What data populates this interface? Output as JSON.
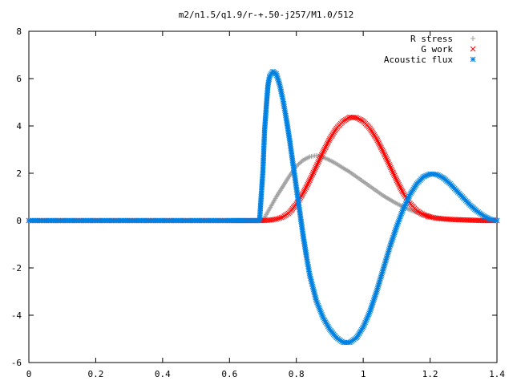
{
  "chart_data": {
    "type": "scatter",
    "title": "m2/n1.5/q1.9/r-+.50-j257/M1.0/512",
    "xlabel": "",
    "ylabel": "",
    "xlim": [
      0,
      1.4
    ],
    "ylim": [
      -6,
      8
    ],
    "xticks": [
      "0",
      "0.2",
      "0.4",
      "0.6",
      "0.8",
      "1",
      "1.2",
      "1.4"
    ],
    "yticks": [
      "-6",
      "-4",
      "-2",
      "0",
      "2",
      "4",
      "6",
      "8"
    ],
    "grid": false,
    "legend_position": "top-right",
    "series": [
      {
        "name": "R stress",
        "marker": "plus",
        "color": "#a0a0a0",
        "points": [
          [
            0.0,
            0
          ],
          [
            0.1,
            0
          ],
          [
            0.2,
            0
          ],
          [
            0.3,
            0
          ],
          [
            0.4,
            0
          ],
          [
            0.5,
            0
          ],
          [
            0.6,
            0
          ],
          [
            0.7,
            0
          ],
          [
            0.72,
            0.5
          ],
          [
            0.74,
            1.0
          ],
          [
            0.76,
            1.45
          ],
          [
            0.78,
            1.9
          ],
          [
            0.8,
            2.3
          ],
          [
            0.82,
            2.55
          ],
          [
            0.84,
            2.7
          ],
          [
            0.86,
            2.75
          ],
          [
            0.88,
            2.68
          ],
          [
            0.9,
            2.55
          ],
          [
            0.92,
            2.4
          ],
          [
            0.94,
            2.22
          ],
          [
            0.96,
            2.05
          ],
          [
            0.98,
            1.85
          ],
          [
            1.0,
            1.65
          ],
          [
            1.02,
            1.45
          ],
          [
            1.04,
            1.25
          ],
          [
            1.06,
            1.05
          ],
          [
            1.08,
            0.88
          ],
          [
            1.1,
            0.72
          ],
          [
            1.12,
            0.58
          ],
          [
            1.14,
            0.45
          ],
          [
            1.16,
            0.35
          ],
          [
            1.18,
            0.26
          ],
          [
            1.2,
            0.18
          ],
          [
            1.22,
            0.12
          ],
          [
            1.24,
            0.08
          ],
          [
            1.26,
            0.05
          ],
          [
            1.28,
            0.03
          ],
          [
            1.3,
            0.02
          ],
          [
            1.32,
            0.01
          ],
          [
            1.34,
            0.0
          ],
          [
            1.36,
            0.0
          ],
          [
            1.38,
            0.0
          ],
          [
            1.4,
            0.0
          ]
        ]
      },
      {
        "name": "G work",
        "marker": "cross",
        "color": "#ff0000",
        "points": [
          [
            0.0,
            0
          ],
          [
            0.1,
            0
          ],
          [
            0.2,
            0
          ],
          [
            0.3,
            0
          ],
          [
            0.4,
            0
          ],
          [
            0.5,
            0
          ],
          [
            0.6,
            0
          ],
          [
            0.7,
            0
          ],
          [
            0.72,
            0.02
          ],
          [
            0.74,
            0.06
          ],
          [
            0.76,
            0.15
          ],
          [
            0.78,
            0.35
          ],
          [
            0.8,
            0.7
          ],
          [
            0.82,
            1.15
          ],
          [
            0.84,
            1.7
          ],
          [
            0.86,
            2.3
          ],
          [
            0.88,
            2.9
          ],
          [
            0.9,
            3.45
          ],
          [
            0.92,
            3.9
          ],
          [
            0.94,
            4.2
          ],
          [
            0.96,
            4.37
          ],
          [
            0.98,
            4.35
          ],
          [
            1.0,
            4.2
          ],
          [
            1.02,
            3.9
          ],
          [
            1.04,
            3.45
          ],
          [
            1.06,
            2.9
          ],
          [
            1.08,
            2.3
          ],
          [
            1.1,
            1.7
          ],
          [
            1.12,
            1.15
          ],
          [
            1.14,
            0.72
          ],
          [
            1.16,
            0.42
          ],
          [
            1.18,
            0.25
          ],
          [
            1.2,
            0.15
          ],
          [
            1.22,
            0.1
          ],
          [
            1.24,
            0.07
          ],
          [
            1.26,
            0.05
          ],
          [
            1.28,
            0.04
          ],
          [
            1.3,
            0.03
          ],
          [
            1.32,
            0.02
          ],
          [
            1.34,
            0.01
          ],
          [
            1.36,
            0.0
          ],
          [
            1.38,
            0.0
          ],
          [
            1.4,
            0.0
          ]
        ]
      },
      {
        "name": "Acoustic flux",
        "marker": "star",
        "color": "#0080e0",
        "points": [
          [
            0.0,
            0
          ],
          [
            0.1,
            0
          ],
          [
            0.2,
            0
          ],
          [
            0.3,
            0
          ],
          [
            0.4,
            0
          ],
          [
            0.5,
            0
          ],
          [
            0.6,
            0
          ],
          [
            0.69,
            0
          ],
          [
            0.7,
            2.1
          ],
          [
            0.705,
            3.8
          ],
          [
            0.71,
            4.8
          ],
          [
            0.715,
            5.7
          ],
          [
            0.72,
            6.1
          ],
          [
            0.73,
            6.3
          ],
          [
            0.74,
            6.2
          ],
          [
            0.75,
            5.75
          ],
          [
            0.76,
            5.1
          ],
          [
            0.77,
            4.3
          ],
          [
            0.78,
            3.4
          ],
          [
            0.79,
            2.4
          ],
          [
            0.8,
            1.4
          ],
          [
            0.81,
            0.4
          ],
          [
            0.82,
            -0.6
          ],
          [
            0.83,
            -1.5
          ],
          [
            0.84,
            -2.3
          ],
          [
            0.86,
            -3.4
          ],
          [
            0.88,
            -4.1
          ],
          [
            0.9,
            -4.6
          ],
          [
            0.92,
            -4.95
          ],
          [
            0.94,
            -5.15
          ],
          [
            0.96,
            -5.15
          ],
          [
            0.98,
            -4.95
          ],
          [
            1.0,
            -4.5
          ],
          [
            1.02,
            -3.85
          ],
          [
            1.04,
            -3.0
          ],
          [
            1.06,
            -2.05
          ],
          [
            1.08,
            -1.1
          ],
          [
            1.1,
            -0.25
          ],
          [
            1.12,
            0.5
          ],
          [
            1.14,
            1.1
          ],
          [
            1.16,
            1.55
          ],
          [
            1.18,
            1.85
          ],
          [
            1.2,
            1.97
          ],
          [
            1.22,
            1.95
          ],
          [
            1.24,
            1.8
          ],
          [
            1.26,
            1.55
          ],
          [
            1.28,
            1.25
          ],
          [
            1.3,
            0.95
          ],
          [
            1.32,
            0.65
          ],
          [
            1.34,
            0.4
          ],
          [
            1.36,
            0.2
          ],
          [
            1.38,
            0.05
          ],
          [
            1.4,
            0.0
          ]
        ]
      }
    ]
  }
}
